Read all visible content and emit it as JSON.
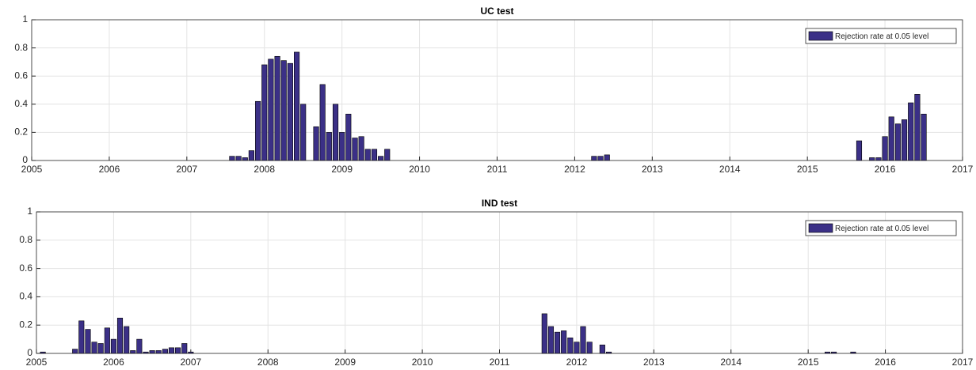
{
  "chart_data": [
    {
      "type": "bar",
      "title": "UC test",
      "x": [
        2007.583,
        2007.667,
        2007.75,
        2007.833,
        2007.917,
        2008,
        2008.083,
        2008.167,
        2008.25,
        2008.333,
        2008.417,
        2008.5,
        2008.667,
        2008.75,
        2008.833,
        2008.917,
        2009,
        2009.083,
        2009.167,
        2009.25,
        2009.333,
        2009.417,
        2009.5,
        2009.583,
        2012.25,
        2012.333,
        2012.417,
        2015.667,
        2015.833,
        2015.917,
        2016,
        2016.083,
        2016.167,
        2016.25,
        2016.333,
        2016.417,
        2016.5
      ],
      "series": [
        {
          "name": "Rejection rate at 0.05 level",
          "color": "#3b3087",
          "values": [
            0.03,
            0.03,
            0.02,
            0.07,
            0.42,
            0.68,
            0.72,
            0.74,
            0.71,
            0.69,
            0.77,
            0.4,
            0.24,
            0.54,
            0.2,
            0.4,
            0.2,
            0.33,
            0.16,
            0.17,
            0.08,
            0.08,
            0.03,
            0.08,
            0.03,
            0.03,
            0.04,
            0.14,
            0.02,
            0.02,
            0.17,
            0.31,
            0.26,
            0.29,
            0.41,
            0.47,
            0.33
          ]
        }
      ],
      "xlim": [
        2005,
        2017
      ],
      "xticks": [
        2005,
        2006,
        2007,
        2008,
        2009,
        2010,
        2011,
        2012,
        2013,
        2014,
        2015,
        2016,
        2017
      ],
      "ylim": [
        0,
        1
      ],
      "yticks": [
        0,
        0.2,
        0.4,
        0.6,
        0.8,
        1
      ],
      "grid": true,
      "legend": "upper right"
    },
    {
      "type": "bar",
      "title": "IND test",
      "x": [
        2005.083,
        2005.5,
        2005.583,
        2005.667,
        2005.75,
        2005.833,
        2005.917,
        2006,
        2006.083,
        2006.167,
        2006.25,
        2006.333,
        2006.417,
        2006.5,
        2006.583,
        2006.667,
        2006.75,
        2006.833,
        2006.917,
        2007,
        2011.583,
        2011.667,
        2011.75,
        2011.833,
        2011.917,
        2012,
        2012.083,
        2012.167,
        2012.333,
        2012.417,
        2015.25,
        2015.333,
        2015.583
      ],
      "series": [
        {
          "name": "Rejection rate at 0.05 level",
          "color": "#3b3087",
          "values": [
            0.01,
            0.03,
            0.23,
            0.17,
            0.08,
            0.07,
            0.18,
            0.1,
            0.25,
            0.19,
            0.02,
            0.1,
            0.01,
            0.02,
            0.02,
            0.03,
            0.04,
            0.04,
            0.07,
            0.01,
            0.28,
            0.19,
            0.15,
            0.16,
            0.11,
            0.08,
            0.19,
            0.08,
            0.06,
            0.01,
            0.01,
            0.01,
            0.01
          ]
        }
      ],
      "xlim": [
        2005,
        2017
      ],
      "xticks": [
        2005,
        2006,
        2007,
        2008,
        2009,
        2010,
        2011,
        2012,
        2013,
        2014,
        2015,
        2016,
        2017
      ],
      "ylim": [
        0,
        1
      ],
      "yticks": [
        0,
        0.2,
        0.4,
        0.6,
        0.8,
        1
      ],
      "grid": true,
      "legend": "upper right"
    }
  ]
}
